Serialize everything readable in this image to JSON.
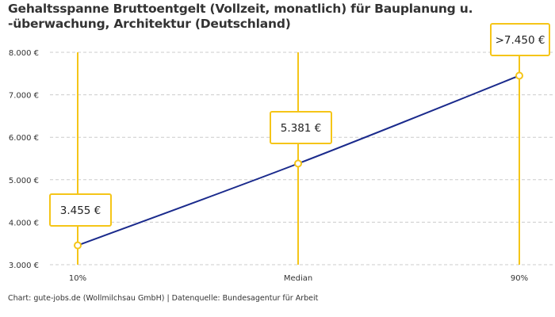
{
  "chart_data": {
    "type": "line",
    "title": "Gehaltsspanne Bruttoentgelt (Vollzeit, monatlich) für Bauplanung u. -überwachung, Architektur (Deutschland)",
    "categories": [
      "10%",
      "Median",
      "90%"
    ],
    "values": [
      3455,
      5381,
      7450
    ],
    "data_labels": [
      "3.455 €",
      "5.381 €",
      ">7.450 €"
    ],
    "ylim": [
      3000,
      8000
    ],
    "yticks": [
      3000,
      4000,
      5000,
      6000,
      7000,
      8000
    ],
    "ytick_labels": [
      "3.000 €",
      "4.000 €",
      "5.000 €",
      "6.000 €",
      "7.000 €",
      "8.000 €"
    ],
    "grid": true,
    "xlabel": "",
    "ylabel": "",
    "colors": {
      "line": "#1a2a8c",
      "accent": "#f5c518",
      "grid": "#cccccc"
    }
  },
  "footer": "Chart: gute-jobs.de (Wollmilchsau GmbH) | Datenquelle: Bundesagentur für Arbeit"
}
